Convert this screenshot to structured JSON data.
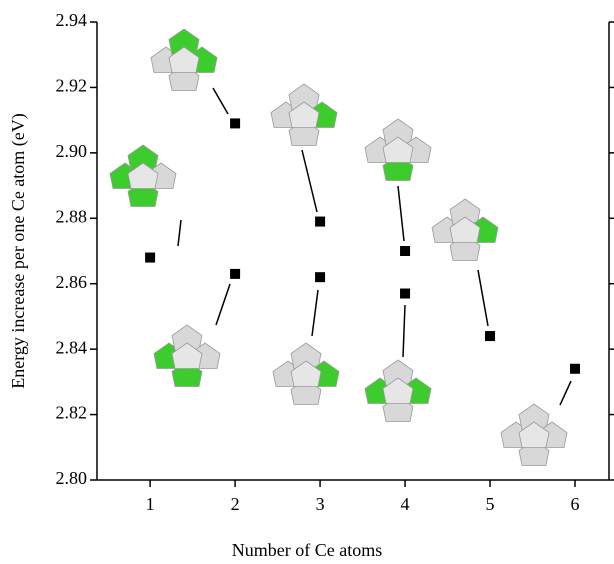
{
  "chart_data": {
    "type": "scatter",
    "xlabel": "Number of Ce atoms",
    "ylabel": "Energy increase per one Ce atom (eV)",
    "x": [
      1,
      2,
      2,
      3,
      3,
      4,
      4,
      5,
      6
    ],
    "values": [
      2.868,
      2.909,
      2.863,
      2.879,
      2.862,
      2.87,
      2.857,
      2.844,
      2.834
    ],
    "color": "#000000",
    "xlim": [
      0.375,
      6.4
    ],
    "xticks": [
      1,
      2,
      3,
      4,
      5,
      6
    ],
    "ylim": [
      2.8,
      2.94
    ],
    "yticks": [
      {
        "value": 2.8,
        "label": "2.80"
      },
      2.82,
      2.84,
      2.86,
      2.88,
      {
        "value": 2.9,
        "label": "2.90"
      },
      2.92,
      2.94
    ]
  }
}
